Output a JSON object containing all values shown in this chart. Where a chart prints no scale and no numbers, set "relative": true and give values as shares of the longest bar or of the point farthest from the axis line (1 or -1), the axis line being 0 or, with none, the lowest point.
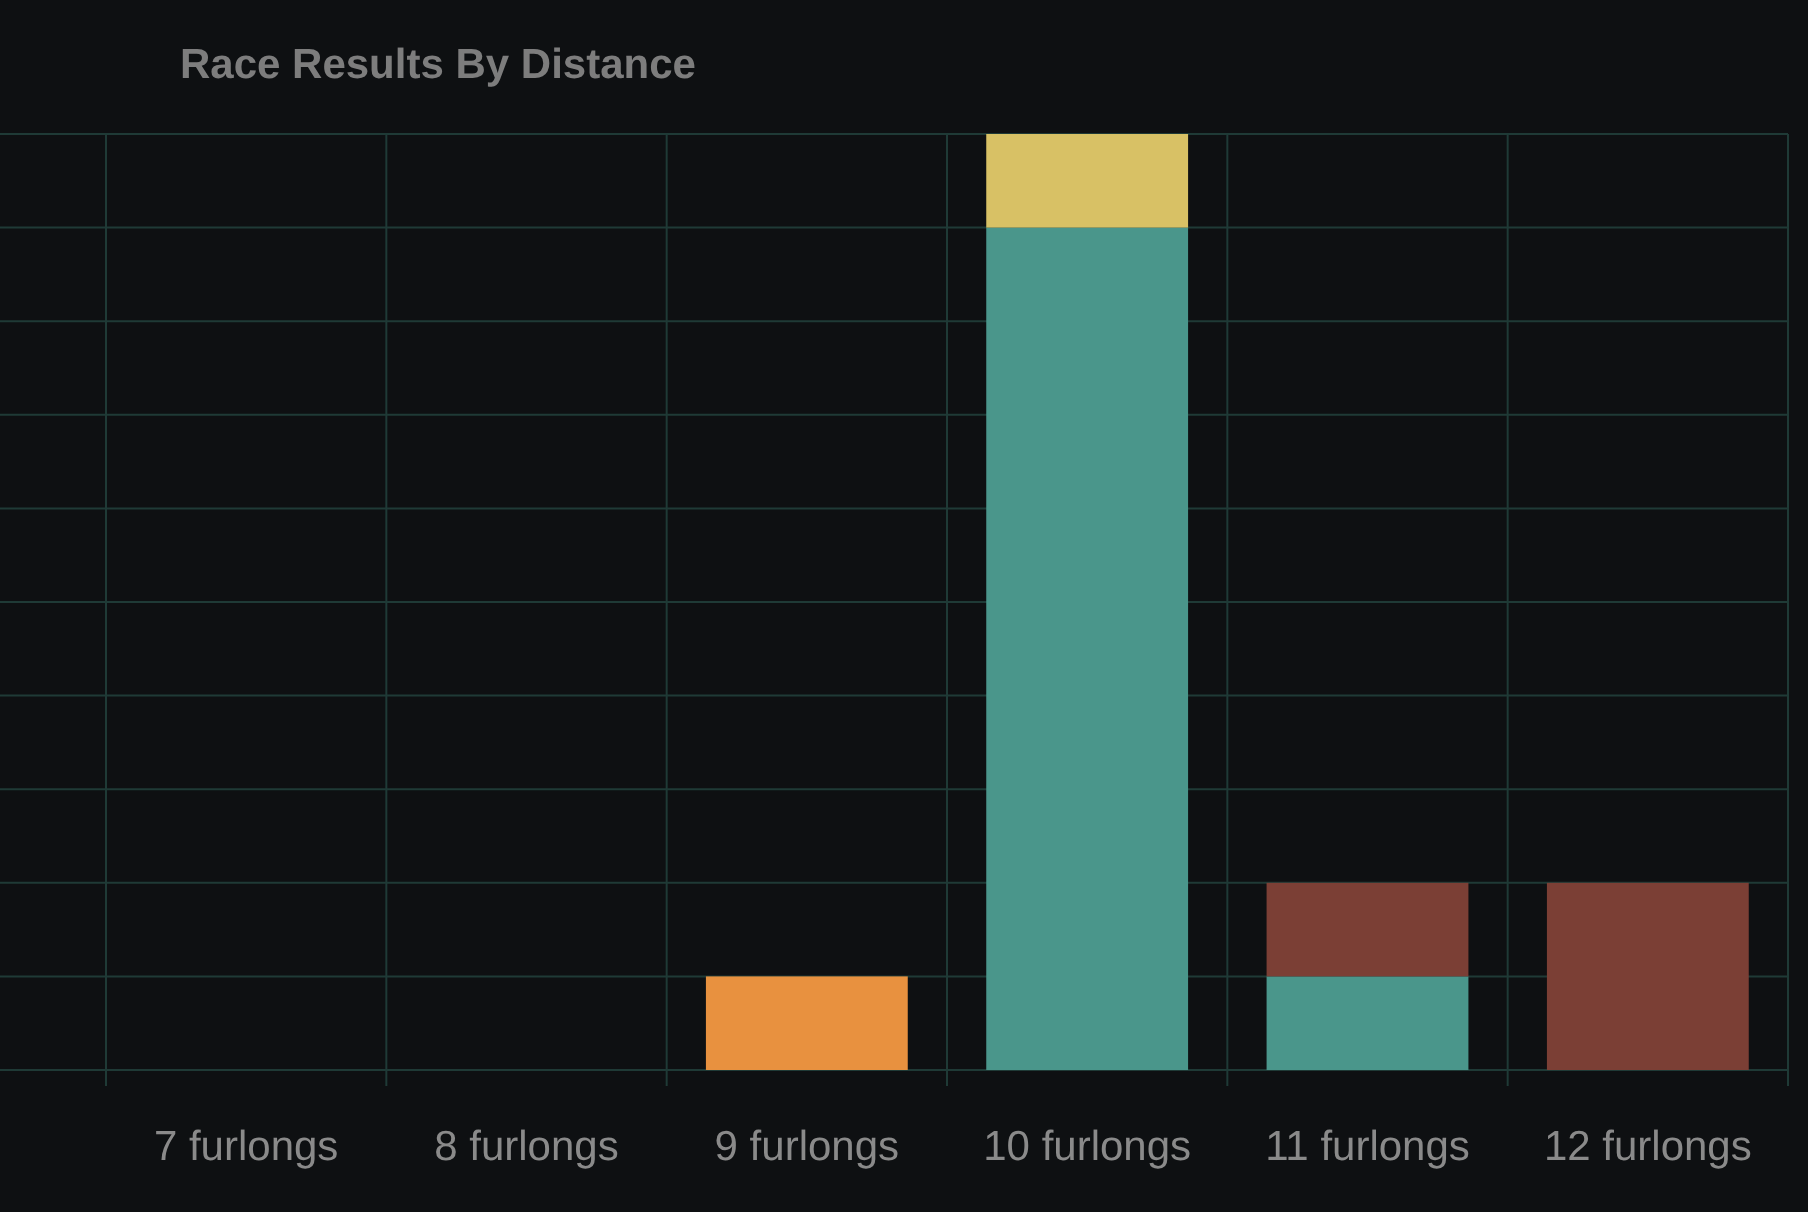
{
  "chart_data": {
    "type": "bar",
    "title": "Race Results By Distance",
    "relative": true,
    "stacked": true,
    "grid": true,
    "categories": [
      "7 furlongs",
      "8 furlongs",
      "9 furlongs",
      "10 furlongs",
      "11 furlongs",
      "12 furlongs"
    ],
    "series": [
      {
        "color": "#e8913f",
        "values": [
          null,
          null,
          0.1,
          null,
          null,
          null
        ]
      },
      {
        "color": "#4a968b",
        "values": [
          null,
          null,
          null,
          0.9,
          0.1,
          null
        ]
      },
      {
        "color": "#d8c165",
        "values": [
          null,
          null,
          null,
          0.1,
          null,
          null
        ]
      },
      {
        "color": "#7b3f35",
        "values": [
          null,
          null,
          null,
          null,
          0.1,
          0.2
        ]
      }
    ]
  }
}
